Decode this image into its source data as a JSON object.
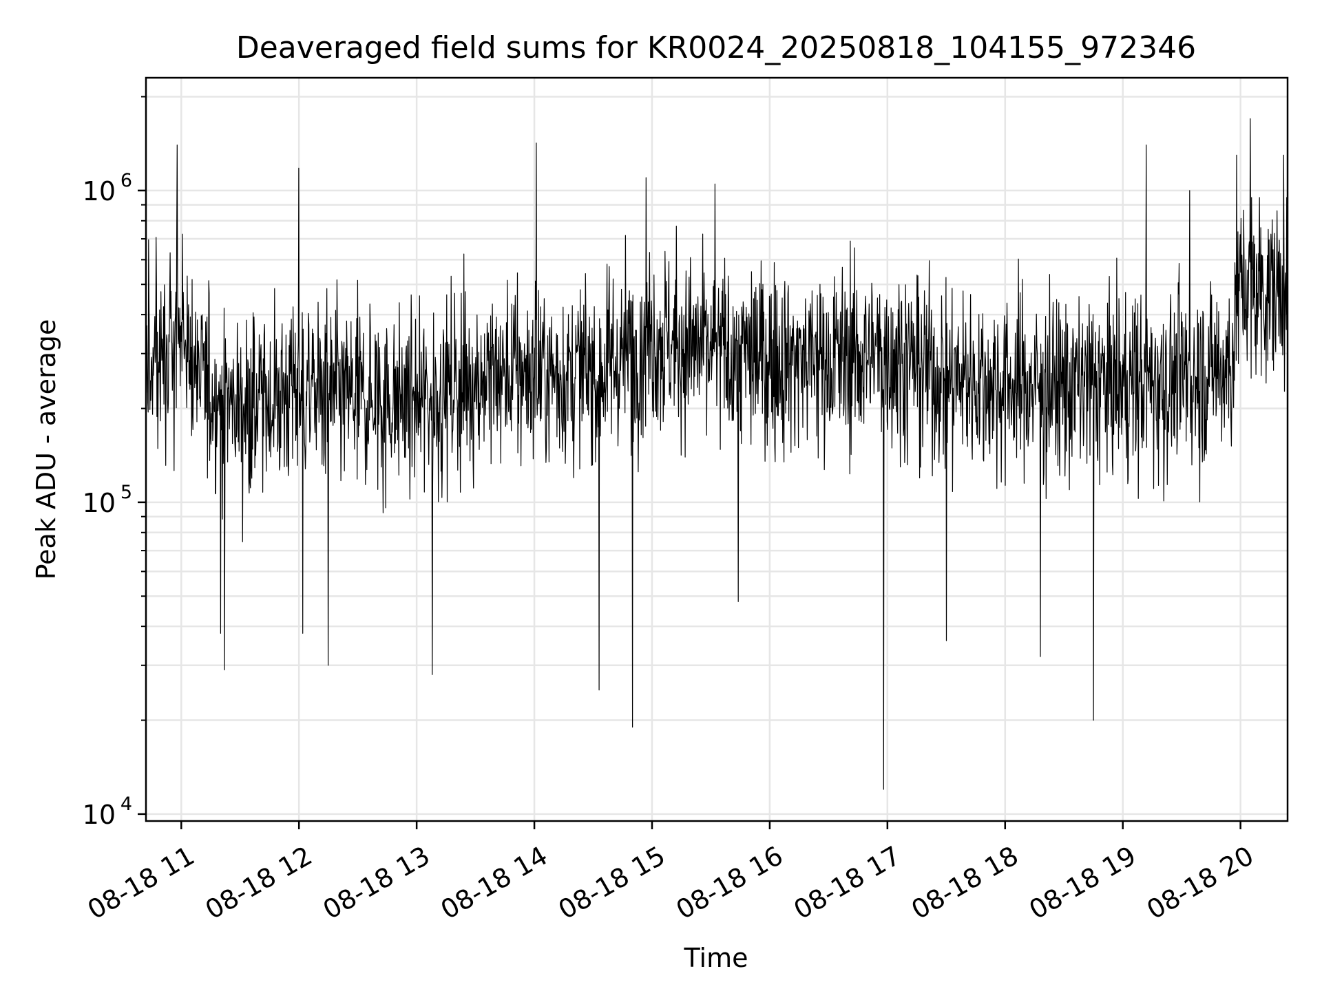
{
  "chart_data": {
    "type": "line",
    "title": "Deaveraged field sums for KR0024_20250818_104155_972346",
    "xlabel": "Time",
    "ylabel": "Peak ADU - average",
    "x_range": [
      "2025-08-18 10:42",
      "2025-08-18 20:24"
    ],
    "y_scale": "log",
    "ylim": [
      9500,
      2300000
    ],
    "grid": true,
    "legend": "none",
    "line_color": "#000000",
    "grid_color": "#e6e6e6",
    "x_ticks": [
      "08-18 11",
      "08-18 12",
      "08-18 13",
      "08-18 14",
      "08-18 15",
      "08-18 16",
      "08-18 17",
      "08-18 18",
      "08-18 19",
      "08-18 20"
    ],
    "y_ticks": [
      {
        "base": "10",
        "exp": "4",
        "value": 10000
      },
      {
        "base": "10",
        "exp": "5",
        "value": 100000
      },
      {
        "base": "10",
        "exp": "6",
        "value": 1000000
      }
    ],
    "series": [
      {
        "baseline": [
          {
            "x": "2025-08-18 10:42",
            "y": 300000
          },
          {
            "x": "2025-08-18 11:00",
            "y": 330000
          },
          {
            "x": "2025-08-18 11:10",
            "y": 240000
          },
          {
            "x": "2025-08-18 11:30",
            "y": 200000
          },
          {
            "x": "2025-08-18 12:00",
            "y": 230000
          },
          {
            "x": "2025-08-18 12:30",
            "y": 215000
          },
          {
            "x": "2025-08-18 13:00",
            "y": 210000
          },
          {
            "x": "2025-08-18 13:30",
            "y": 250000
          },
          {
            "x": "2025-08-18 14:00",
            "y": 260000
          },
          {
            "x": "2025-08-18 14:30",
            "y": 255000
          },
          {
            "x": "2025-08-18 15:00",
            "y": 340000
          },
          {
            "x": "2025-08-18 15:30",
            "y": 300000
          },
          {
            "x": "2025-08-18 16:00",
            "y": 290000
          },
          {
            "x": "2025-08-18 16:30",
            "y": 285000
          },
          {
            "x": "2025-08-18 17:00",
            "y": 300000
          },
          {
            "x": "2025-08-18 17:30",
            "y": 250000
          },
          {
            "x": "2025-08-18 18:00",
            "y": 240000
          },
          {
            "x": "2025-08-18 18:30",
            "y": 235000
          },
          {
            "x": "2025-08-18 19:00",
            "y": 240000
          },
          {
            "x": "2025-08-18 19:30",
            "y": 245000
          },
          {
            "x": "2025-08-18 19:55",
            "y": 280000
          },
          {
            "x": "2025-08-18 20:00",
            "y": 500000
          },
          {
            "x": "2025-08-18 20:24",
            "y": 470000
          }
        ],
        "spikes": [
          {
            "x": "2025-08-18 10:58",
            "y": 1400000
          },
          {
            "x": "2025-08-18 11:20",
            "y": 38000
          },
          {
            "x": "2025-08-18 11:22",
            "y": 29000
          },
          {
            "x": "2025-08-18 12:00",
            "y": 1180000
          },
          {
            "x": "2025-08-18 12:02",
            "y": 38000
          },
          {
            "x": "2025-08-18 12:15",
            "y": 30000
          },
          {
            "x": "2025-08-18 13:08",
            "y": 22000
          },
          {
            "x": "2025-08-18 13:08",
            "y": 28000
          },
          {
            "x": "2025-08-18 14:01",
            "y": 1420000
          },
          {
            "x": "2025-08-18 14:33",
            "y": 25000
          },
          {
            "x": "2025-08-18 14:50",
            "y": 19000
          },
          {
            "x": "2025-08-18 14:57",
            "y": 1100000
          },
          {
            "x": "2025-08-18 15:32",
            "y": 1050000
          },
          {
            "x": "2025-08-18 15:44",
            "y": 48000
          },
          {
            "x": "2025-08-18 16:58",
            "y": 12000
          },
          {
            "x": "2025-08-18 17:30",
            "y": 36000
          },
          {
            "x": "2025-08-18 18:18",
            "y": 32000
          },
          {
            "x": "2025-08-18 18:45",
            "y": 20000
          },
          {
            "x": "2025-08-18 19:12",
            "y": 1400000
          },
          {
            "x": "2025-08-18 19:34",
            "y": 1000000
          },
          {
            "x": "2025-08-18 19:58",
            "y": 1300000
          },
          {
            "x": "2025-08-18 20:05",
            "y": 1700000
          },
          {
            "x": "2025-08-18 20:22",
            "y": 1300000
          }
        ]
      }
    ]
  }
}
